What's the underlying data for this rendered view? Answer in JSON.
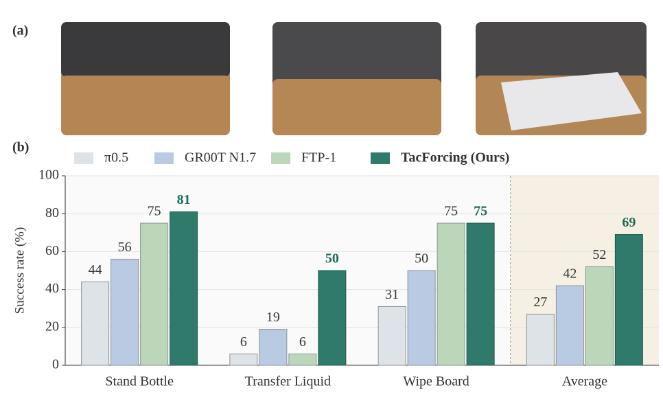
{
  "panels": [
    "(a)",
    "(b)"
  ],
  "chart_data": {
    "type": "bar",
    "ylabel": "Success rate (%)",
    "categories": [
      "Stand Bottle",
      "Transfer Liquid",
      "Wipe Board",
      "Average"
    ],
    "series": [
      {
        "name": "π0.5",
        "color": "#dde3e7",
        "values": [
          44,
          6,
          31,
          27
        ]
      },
      {
        "name": "GR00T N1.7",
        "color": "#b9cbe3",
        "values": [
          56,
          19,
          50,
          42
        ]
      },
      {
        "name": "FTP-1",
        "color": "#bcd6b9",
        "values": [
          75,
          6,
          75,
          52
        ]
      },
      {
        "name": "TacForcing (Ours)",
        "color": "#2f7a6b",
        "values": [
          81,
          50,
          75,
          69
        ]
      }
    ],
    "ylim": [
      0,
      100
    ],
    "yticks": [
      0,
      20,
      40,
      60,
      80,
      100
    ],
    "grid": true,
    "legend": "top"
  }
}
